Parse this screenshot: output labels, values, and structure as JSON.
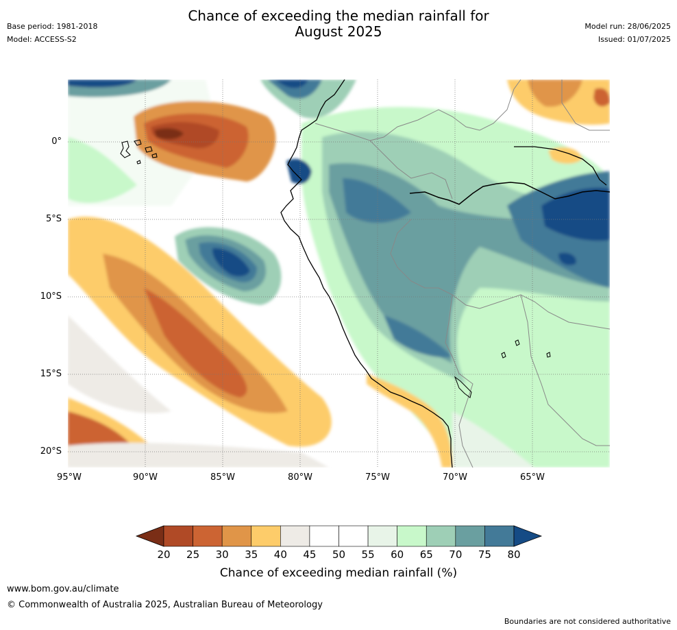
{
  "header": {
    "base_period": "Base period: 1981-2018",
    "model": "Model: ACCESS-S2",
    "title_line1": "Chance of exceeding the median rainfall for",
    "title_line2": "August 2025",
    "model_run": "Model run: 28/06/2025",
    "issued": "Issued: 01/07/2025"
  },
  "map": {
    "lat_labels": [
      "0°",
      "5°S",
      "10°S",
      "15°S",
      "20°S"
    ],
    "lon_labels": [
      "95°W",
      "90°W",
      "85°W",
      "80°W",
      "75°W",
      "70°W",
      "65°W"
    ]
  },
  "colorbar": {
    "ticks": [
      "20",
      "25",
      "30",
      "35",
      "40",
      "45",
      "50",
      "55",
      "60",
      "65",
      "70",
      "75",
      "80"
    ],
    "colors": [
      "#7a2e16",
      "#b04a26",
      "#cc6433",
      "#e09548",
      "#fdcc6a",
      "#eeebe6",
      "#ffffff",
      "#ffffff",
      "#e8f4e8",
      "#c8f8ca",
      "#9ecfb6",
      "#6a9fa0",
      "#437a98",
      "#154b85"
    ],
    "label": "Chance of exceeding median rainfall (%)"
  },
  "footer": {
    "website": "www.bom.gov.au/climate",
    "copyright": "© Commonwealth of Australia 2025, Australian Bureau of Meteorology",
    "disclaimer": "Boundaries are not considered authoritative"
  }
}
